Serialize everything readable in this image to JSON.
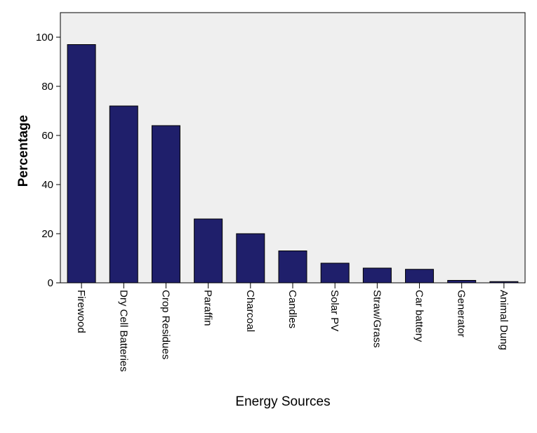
{
  "chart_data": {
    "type": "bar",
    "title": "",
    "xlabel": "Energy Sources",
    "ylabel": "Percentage",
    "ylim": [
      0,
      110
    ],
    "yticks": [
      0,
      20,
      40,
      60,
      80,
      100
    ],
    "categories": [
      "Firewood",
      "Dry Cell Batteries",
      "Crop Residues",
      "Paraffin",
      "Charcoal",
      "Candles",
      "Solar PV",
      "Straw/Grass",
      "Car battery",
      "Generator",
      "Animal Dung"
    ],
    "values": [
      97,
      72,
      64,
      26,
      20,
      13,
      8,
      6,
      5.5,
      1,
      0.5
    ],
    "grid": false,
    "legend": "none",
    "colors": {
      "bar_fill": "#1f1f6b",
      "bar_stroke": "#000000",
      "plot_background": "#efefef"
    }
  }
}
